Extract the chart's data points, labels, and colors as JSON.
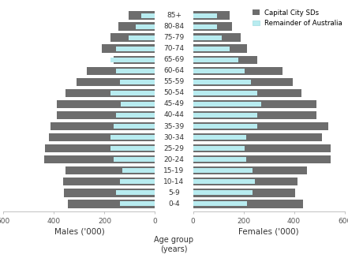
{
  "age_groups": [
    "0-4",
    "5-9",
    "10-14",
    "15-19",
    "20-24",
    "25-29",
    "30-34",
    "35-39",
    "40-44",
    "45-49",
    "50-54",
    "55-59",
    "60-64",
    "65-69",
    "70-74",
    "75-79",
    "80-84",
    "85+"
  ],
  "males_city": [
    345,
    360,
    365,
    355,
    440,
    435,
    420,
    415,
    390,
    390,
    355,
    310,
    270,
    165,
    210,
    175,
    145,
    105
  ],
  "males_remainder": [
    140,
    155,
    140,
    130,
    165,
    175,
    175,
    165,
    155,
    135,
    175,
    140,
    155,
    175,
    155,
    105,
    75,
    55
  ],
  "females_city": [
    435,
    405,
    415,
    450,
    545,
    545,
    510,
    535,
    490,
    490,
    430,
    395,
    355,
    255,
    215,
    190,
    155,
    145
  ],
  "females_remainder": [
    215,
    235,
    245,
    235,
    210,
    205,
    210,
    255,
    255,
    270,
    255,
    230,
    205,
    180,
    145,
    115,
    95,
    95
  ],
  "color_city": "#6d6d6d",
  "color_remainder": "#b8ecf0",
  "color_remainder_edge": "#a0dce0",
  "xlim": 600,
  "xlabel_left": "Males ('000)",
  "xlabel_right": "Females ('000)",
  "xlabel_center": "Age group\n(years)",
  "legend_city": "Capital City SDs",
  "legend_remainder": "Remainder of Australia",
  "bg_color": "#ffffff",
  "spine_color": "#aaaaaa",
  "tick_label_color": "#555555"
}
